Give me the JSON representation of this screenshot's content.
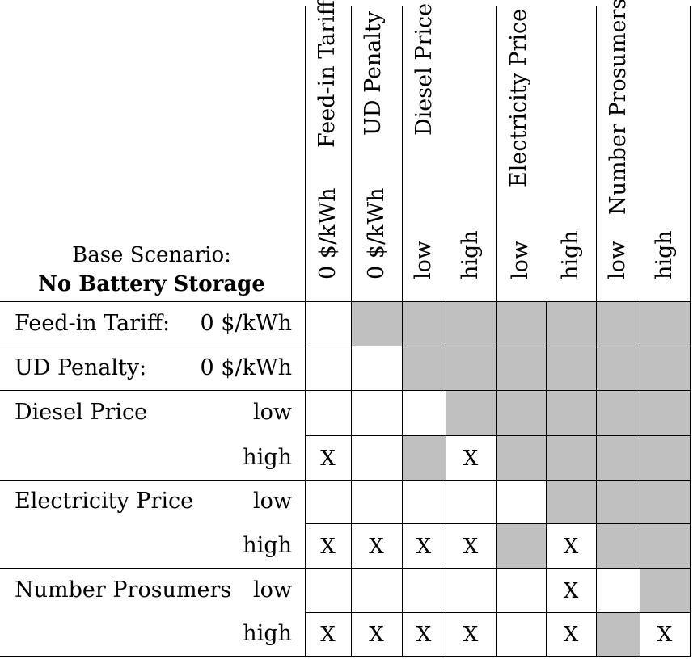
{
  "corner": {
    "line1": "Base Scenario:",
    "line2": "No Battery Storage"
  },
  "column_groups": [
    {
      "name": "Feed-in Tariff",
      "levels": [
        "0 $/kWh"
      ]
    },
    {
      "name": "UD Penalty",
      "levels": [
        "0 $/kWh"
      ]
    },
    {
      "name": "Diesel Price",
      "levels": [
        "low",
        "high"
      ]
    },
    {
      "name": "Electricity Price",
      "levels": [
        "low",
        "high"
      ]
    },
    {
      "name": "Number Prosumers",
      "levels": [
        "low",
        "high"
      ]
    }
  ],
  "rows": [
    {
      "group": "Feed-in Tariff:",
      "level": "0 $/kWh",
      "cells": [
        "",
        "",
        "",
        "",
        "",
        "",
        "",
        ""
      ],
      "shaded": [
        false,
        true,
        true,
        true,
        true,
        true,
        true,
        true
      ]
    },
    {
      "group": "UD Penalty:",
      "level": "0 $/kWh",
      "cells": [
        "",
        "",
        "",
        "",
        "",
        "",
        "",
        ""
      ],
      "shaded": [
        false,
        false,
        true,
        true,
        true,
        true,
        true,
        true
      ]
    },
    {
      "group": "Diesel Price",
      "level": "low",
      "cells": [
        "",
        "",
        "",
        "",
        "",
        "",
        "",
        ""
      ],
      "shaded": [
        false,
        false,
        false,
        true,
        true,
        true,
        true,
        true
      ]
    },
    {
      "group": "",
      "level": "high",
      "cells": [
        "X",
        "",
        "",
        "X",
        "",
        "",
        "",
        ""
      ],
      "shaded": [
        false,
        false,
        true,
        false,
        true,
        true,
        true,
        true
      ]
    },
    {
      "group": "Electricity Price",
      "level": "low",
      "cells": [
        "",
        "",
        "",
        "",
        "",
        "",
        "",
        ""
      ],
      "shaded": [
        false,
        false,
        false,
        false,
        false,
        true,
        true,
        true
      ]
    },
    {
      "group": "",
      "level": "high",
      "cells": [
        "X",
        "X",
        "X",
        "X",
        "",
        "X",
        "",
        ""
      ],
      "shaded": [
        false,
        false,
        false,
        false,
        true,
        false,
        true,
        true
      ]
    },
    {
      "group": "Number Prosumers",
      "level": "low",
      "cells": [
        "",
        "",
        "",
        "",
        "",
        "X",
        "",
        ""
      ],
      "shaded": [
        false,
        false,
        false,
        false,
        false,
        false,
        false,
        true
      ]
    },
    {
      "group": "",
      "level": "high",
      "cells": [
        "X",
        "X",
        "X",
        "X",
        "",
        "X",
        "",
        "X"
      ],
      "shaded": [
        false,
        false,
        false,
        false,
        false,
        false,
        true,
        false
      ]
    }
  ]
}
